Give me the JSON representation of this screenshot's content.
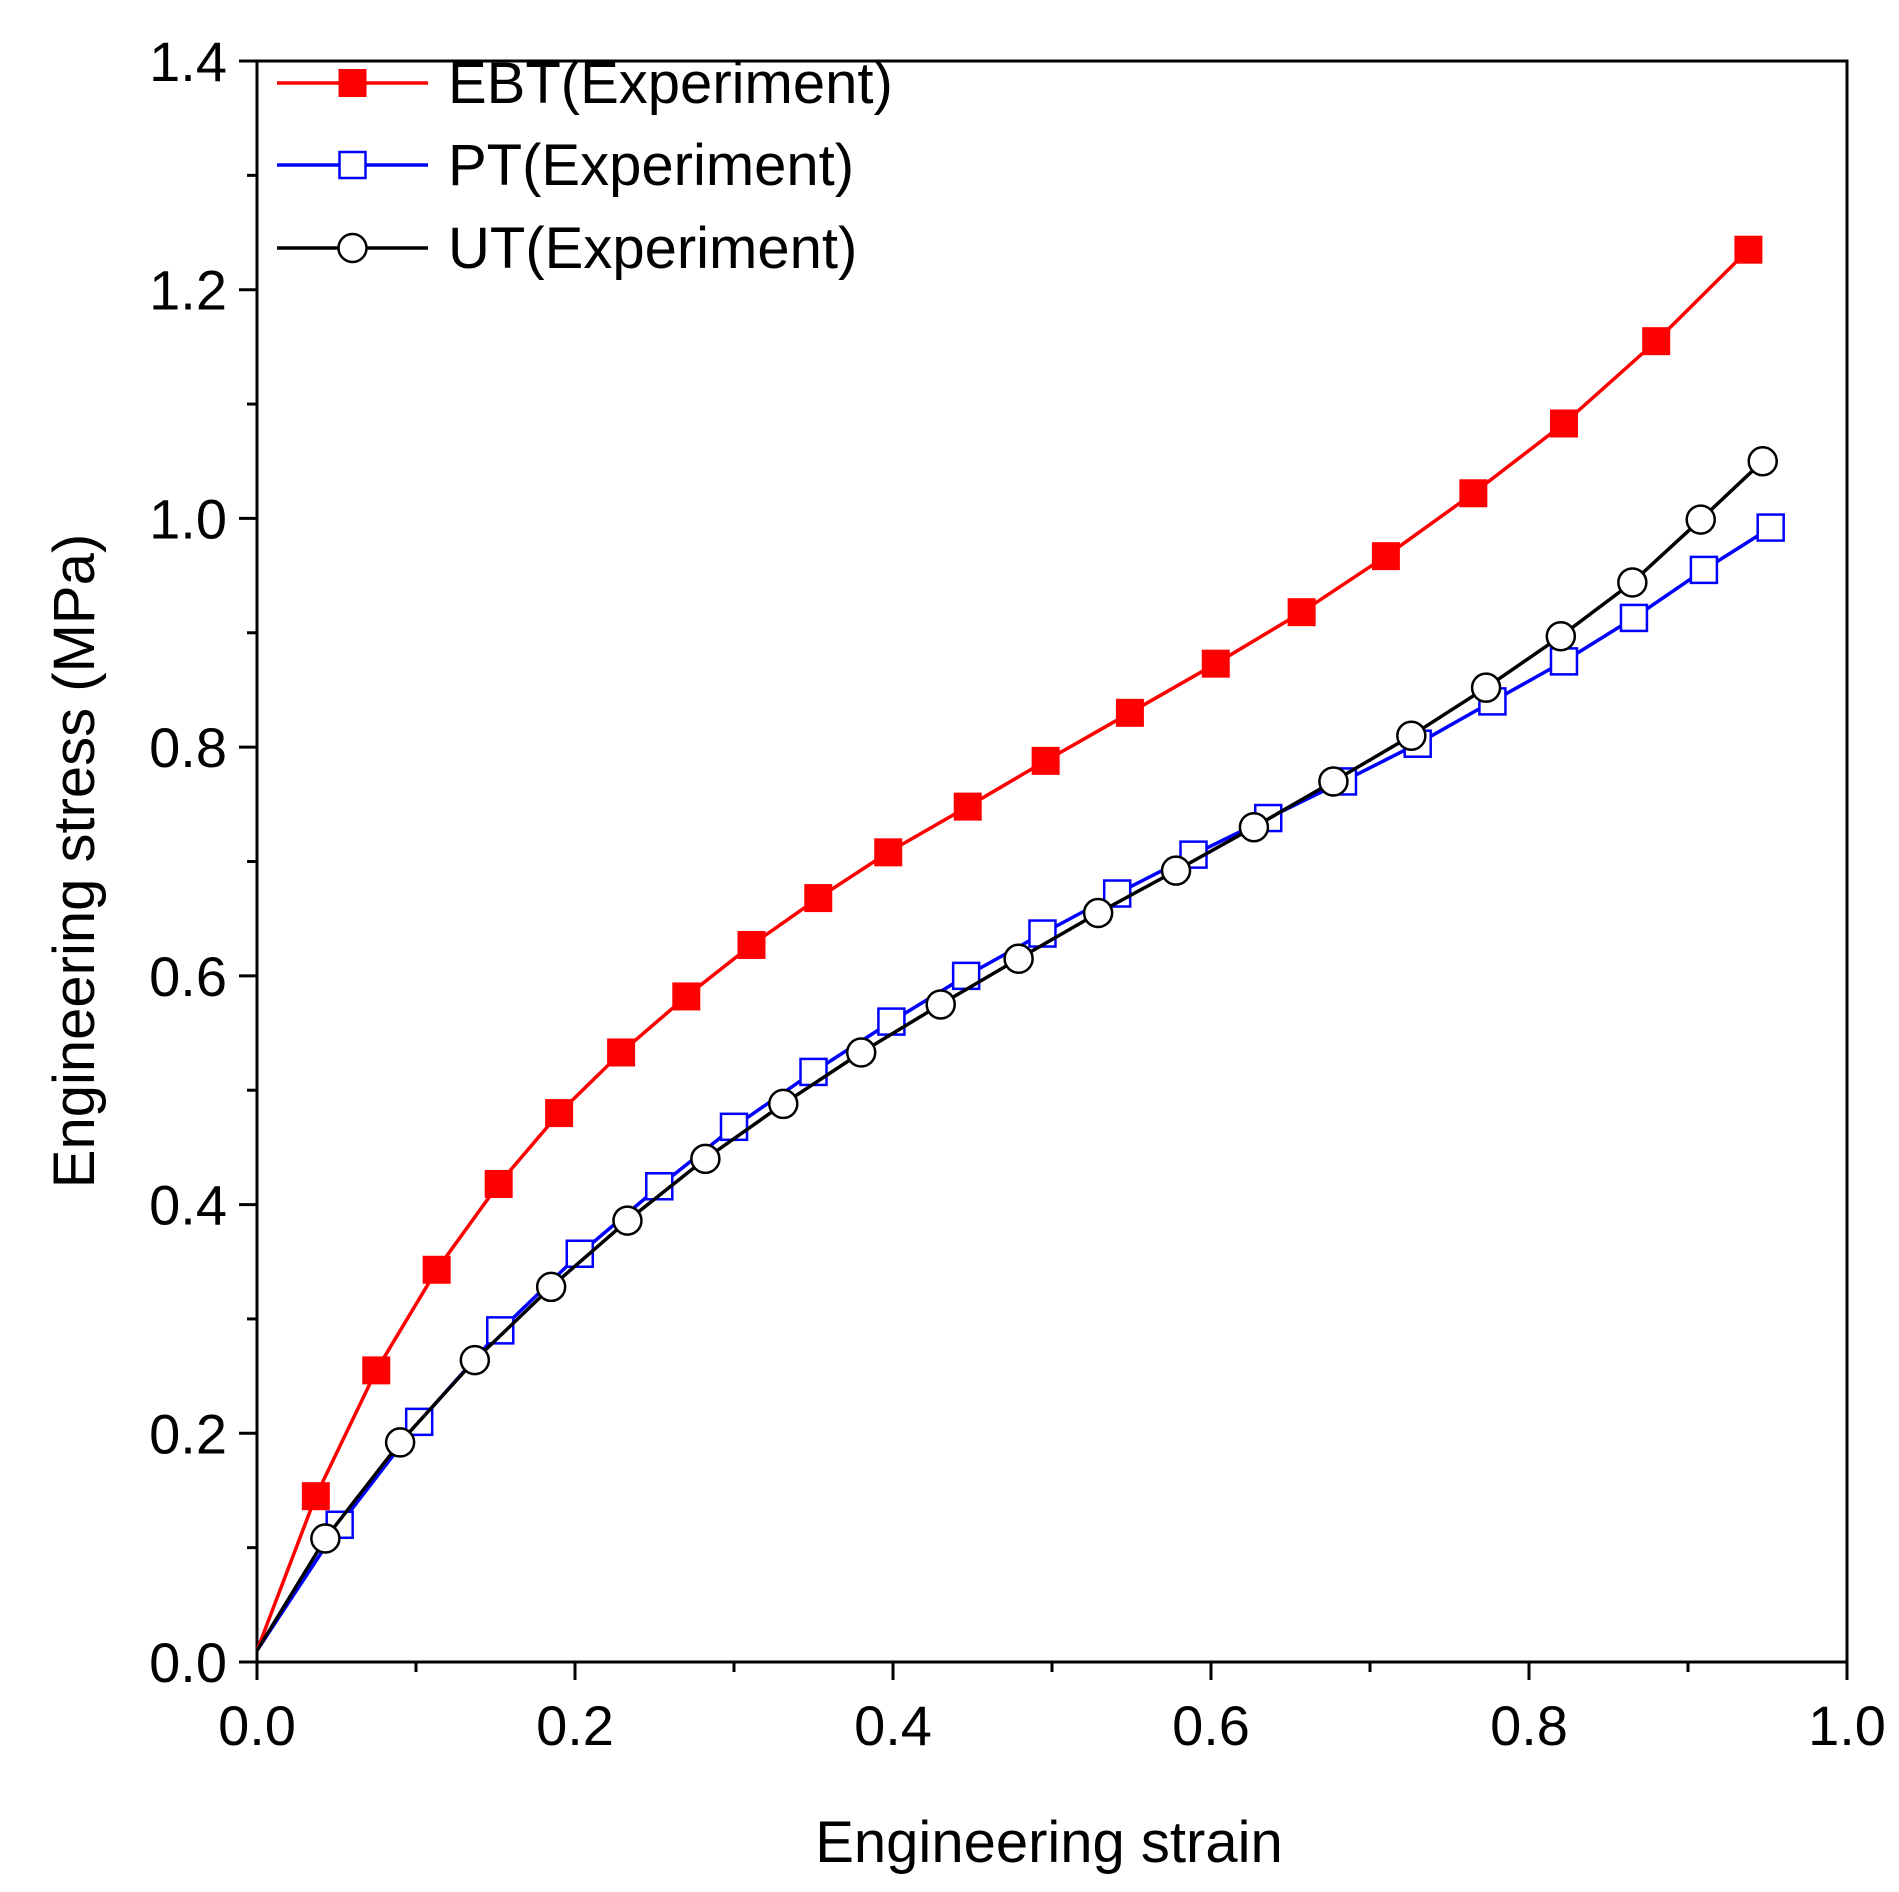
{
  "chart_data": {
    "type": "line",
    "title": "",
    "xlabel": "Engineering strain",
    "ylabel": "Engineering stress (MPa)",
    "xlim": [
      0.0,
      1.0
    ],
    "ylim": [
      0.0,
      1.4
    ],
    "x_ticks": [
      "0.0",
      "0.2",
      "0.4",
      "0.6",
      "0.8",
      "1.0"
    ],
    "y_ticks": [
      "0.0",
      "0.2",
      "0.4",
      "0.6",
      "0.8",
      "1.0",
      "1.2",
      "1.4"
    ],
    "grid": false,
    "legend_position": "top-left",
    "series": [
      {
        "name": "EBT(Experiment)",
        "color": "#ff0000",
        "marker": "filled-square",
        "x": [
          0.0,
          0.037,
          0.075,
          0.113,
          0.152,
          0.19,
          0.229,
          0.27,
          0.311,
          0.353,
          0.397,
          0.447,
          0.496,
          0.549,
          0.603,
          0.657,
          0.71,
          0.765,
          0.822,
          0.88,
          0.938
        ],
        "y": [
          0.01,
          0.145,
          0.255,
          0.343,
          0.418,
          0.48,
          0.533,
          0.582,
          0.627,
          0.668,
          0.708,
          0.748,
          0.788,
          0.83,
          0.873,
          0.918,
          0.967,
          1.022,
          1.083,
          1.155,
          1.235
        ]
      },
      {
        "name": "PT(Experiment)",
        "color": "#0000ff",
        "marker": "open-square",
        "x": [
          0.0,
          0.052,
          0.102,
          0.153,
          0.203,
          0.253,
          0.3,
          0.35,
          0.399,
          0.446,
          0.494,
          0.541,
          0.589,
          0.636,
          0.683,
          0.73,
          0.777,
          0.822,
          0.866,
          0.91,
          0.952
        ],
        "y": [
          0.01,
          0.12,
          0.21,
          0.29,
          0.357,
          0.416,
          0.468,
          0.516,
          0.56,
          0.6,
          0.637,
          0.672,
          0.706,
          0.738,
          0.77,
          0.803,
          0.84,
          0.875,
          0.913,
          0.955,
          0.992
        ]
      },
      {
        "name": "UT(Experiment)",
        "color": "#000000",
        "marker": "open-circle",
        "x": [
          0.0,
          0.043,
          0.09,
          0.137,
          0.185,
          0.233,
          0.282,
          0.331,
          0.38,
          0.43,
          0.479,
          0.529,
          0.578,
          0.627,
          0.677,
          0.726,
          0.773,
          0.82,
          0.865,
          0.908,
          0.947
        ],
        "y": [
          0.01,
          0.108,
          0.192,
          0.264,
          0.328,
          0.386,
          0.44,
          0.488,
          0.533,
          0.575,
          0.615,
          0.655,
          0.692,
          0.73,
          0.77,
          0.81,
          0.852,
          0.897,
          0.944,
          0.999,
          1.05
        ]
      }
    ]
  }
}
